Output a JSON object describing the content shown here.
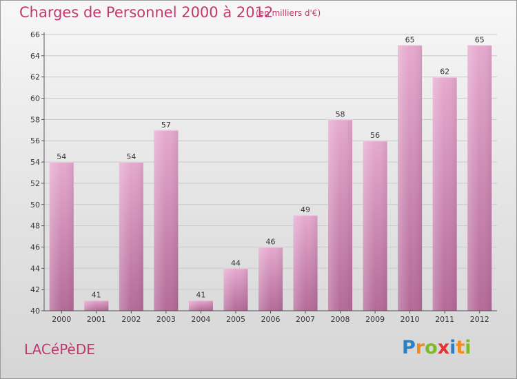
{
  "title": "Charges de Personnel 2000 à 2012",
  "subtitle": "(en milliers d'€)",
  "city": "LACéPèDE",
  "logo": {
    "letters": [
      "P",
      "r",
      "o",
      "x",
      "i",
      "t",
      "i"
    ],
    "colors": [
      "#2d7fc2",
      "#f08c1c",
      "#7fb92a",
      "#e4302f",
      "#2d7fc2",
      "#f08c1c",
      "#7fb92a"
    ]
  },
  "chart_data": {
    "type": "bar",
    "categories": [
      "2000",
      "2001",
      "2002",
      "2003",
      "2004",
      "2005",
      "2006",
      "2007",
      "2008",
      "2009",
      "2010",
      "2011",
      "2012"
    ],
    "values": [
      54,
      41,
      54,
      57,
      41,
      44,
      46,
      49,
      58,
      56,
      65,
      62,
      65
    ],
    "data_labels": [
      "54",
      "41",
      "54",
      "57",
      "41",
      "44",
      "46",
      "49",
      "58",
      "56",
      "65",
      "62",
      "65"
    ],
    "ylim": [
      40,
      66
    ],
    "yticks": [
      40,
      42,
      44,
      46,
      48,
      50,
      52,
      54,
      56,
      58,
      60,
      62,
      64,
      66
    ],
    "grid": true,
    "bar_color": "#d98fbb"
  }
}
